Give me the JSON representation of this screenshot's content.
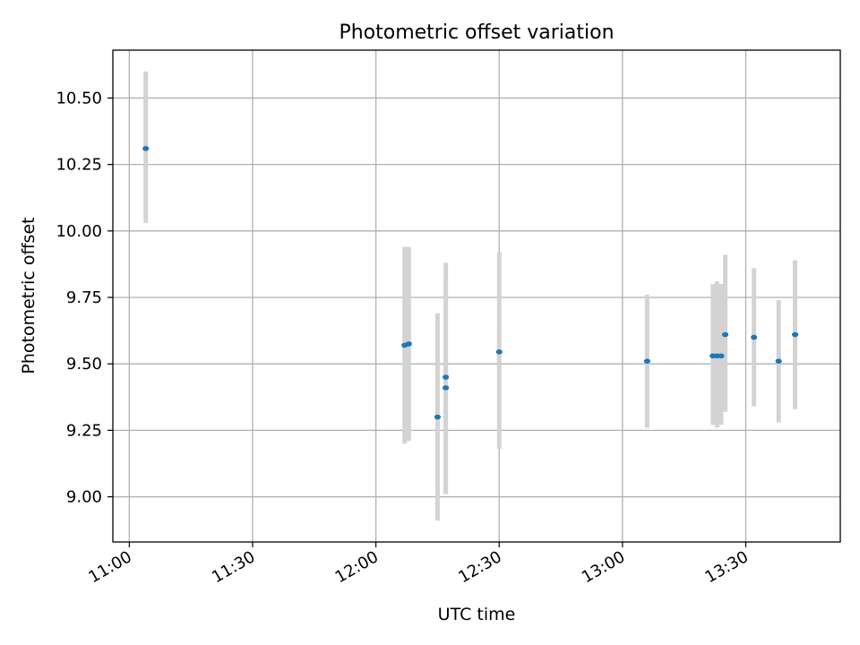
{
  "chart_data": {
    "type": "scatter",
    "title": "Photometric offset variation",
    "xlabel": "UTC time",
    "ylabel": "Photometric offset",
    "x_axis": "time",
    "xlim": [
      "10:56",
      "13:53"
    ],
    "ylim": [
      8.83,
      10.68
    ],
    "x_ticks": [
      "11:00",
      "11:30",
      "12:00",
      "12:30",
      "13:00",
      "13:30"
    ],
    "y_ticks": [
      9.0,
      9.25,
      9.5,
      9.75,
      10.0,
      10.25,
      10.5
    ],
    "y_tick_labels": [
      "9.00",
      "9.25",
      "9.50",
      "9.75",
      "10.00",
      "10.25",
      "10.50"
    ],
    "grid": true,
    "colors": {
      "point": "#1f77b4",
      "errorbar": "#d3d3d3",
      "grid": "#b0b0b0"
    },
    "points": [
      {
        "x": "11:04",
        "y": 10.31,
        "err_low": 10.03,
        "err_high": 10.6
      },
      {
        "x": "12:07",
        "y": 9.57,
        "err_low": 9.2,
        "err_high": 9.94
      },
      {
        "x": "12:08",
        "y": 9.575,
        "err_low": 9.21,
        "err_high": 9.94
      },
      {
        "x": "12:15",
        "y": 9.3,
        "err_low": 8.91,
        "err_high": 9.69
      },
      {
        "x": "12:17",
        "y": 9.45,
        "err_low": 9.01,
        "err_high": 9.88
      },
      {
        "x": "12:17",
        "y": 9.41,
        "err_low": 9.01,
        "err_high": 9.81
      },
      {
        "x": "12:30",
        "y": 9.545,
        "err_low": 9.18,
        "err_high": 9.92
      },
      {
        "x": "13:06",
        "y": 9.51,
        "err_low": 9.26,
        "err_high": 9.76
      },
      {
        "x": "13:22",
        "y": 9.53,
        "err_low": 9.27,
        "err_high": 9.8
      },
      {
        "x": "13:23",
        "y": 9.53,
        "err_low": 9.26,
        "err_high": 9.81
      },
      {
        "x": "13:24",
        "y": 9.53,
        "err_low": 9.27,
        "err_high": 9.8
      },
      {
        "x": "13:25",
        "y": 9.61,
        "err_low": 9.32,
        "err_high": 9.91
      },
      {
        "x": "13:32",
        "y": 9.6,
        "err_low": 9.34,
        "err_high": 9.86
      },
      {
        "x": "13:38",
        "y": 9.51,
        "err_low": 9.28,
        "err_high": 9.74
      },
      {
        "x": "13:42",
        "y": 9.61,
        "err_low": 9.33,
        "err_high": 9.89
      }
    ]
  }
}
